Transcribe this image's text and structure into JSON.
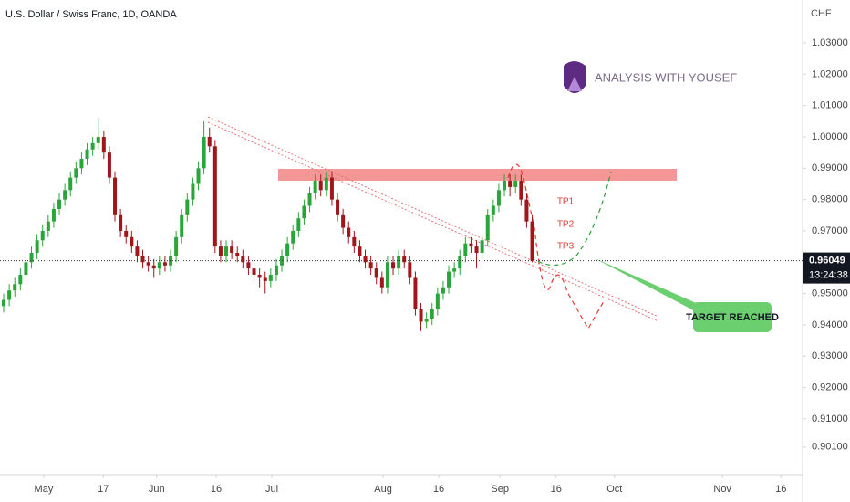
{
  "chart_data": {
    "type": "candlestick",
    "title": "U.S. Dollar / Swiss Franc, 1D, OANDA",
    "currency": "CHF",
    "watermark": "ANALYSIS WITH YOUSEF",
    "annotations": {
      "tp1": "TP1",
      "tp2": "TP2",
      "tp3": "TP3",
      "target": "TARGET REACHED"
    },
    "last_price": 0.96049,
    "countdown": "13:24:38",
    "up_color": "#2aa53a",
    "down_color": "#a0161b",
    "ylim": [
      0.8922,
      1.0437
    ],
    "xlim": [
      -0.66,
      143.6
    ],
    "yticks": [
      {
        "value": 1.03,
        "label": "1.03000"
      },
      {
        "value": 1.02,
        "label": "1.02000"
      },
      {
        "value": 1.01,
        "label": "1.01000"
      },
      {
        "value": 1.0,
        "label": "1.00000"
      },
      {
        "value": 0.99,
        "label": "0.99000"
      },
      {
        "value": 0.98,
        "label": "0.98000"
      },
      {
        "value": 0.97,
        "label": "0.97000"
      },
      {
        "value": 0.95,
        "label": "0.95000"
      },
      {
        "value": 0.94,
        "label": "0.94000"
      },
      {
        "value": 0.93,
        "label": "0.93000"
      },
      {
        "value": 0.92,
        "label": "0.92000"
      },
      {
        "value": 0.91,
        "label": "0.91000"
      },
      {
        "value": 0.901,
        "label": "0.90100"
      }
    ],
    "xticks": [
      {
        "value": 7.2,
        "label": "May"
      },
      {
        "value": 17.9,
        "label": "17"
      },
      {
        "value": 27.5,
        "label": "Jun"
      },
      {
        "value": 38.2,
        "label": "16"
      },
      {
        "value": 48.2,
        "label": "Jul"
      },
      {
        "value": 68.2,
        "label": "Aug"
      },
      {
        "value": 78.2,
        "label": "16"
      },
      {
        "value": 89.2,
        "label": "Sep"
      },
      {
        "value": 99.3,
        "label": "16"
      },
      {
        "value": 109.8,
        "label": "Oct"
      },
      {
        "value": 129.2,
        "label": "Nov"
      },
      {
        "value": 139.7,
        "label": "16"
      }
    ],
    "candles": [
      [
        0.946,
        0.95,
        0.944,
        0.948
      ],
      [
        0.948,
        0.953,
        0.946,
        0.951
      ],
      [
        0.951,
        0.955,
        0.949,
        0.953
      ],
      [
        0.953,
        0.958,
        0.951,
        0.956
      ],
      [
        0.956,
        0.962,
        0.954,
        0.96
      ],
      [
        0.96,
        0.965,
        0.958,
        0.963
      ],
      [
        0.963,
        0.969,
        0.961,
        0.967
      ],
      [
        0.967,
        0.972,
        0.965,
        0.97
      ],
      [
        0.97,
        0.975,
        0.968,
        0.973
      ],
      [
        0.973,
        0.979,
        0.971,
        0.977
      ],
      [
        0.977,
        0.982,
        0.975,
        0.98
      ],
      [
        0.98,
        0.985,
        0.978,
        0.983
      ],
      [
        0.983,
        0.989,
        0.981,
        0.987
      ],
      [
        0.987,
        0.992,
        0.985,
        0.99
      ],
      [
        0.99,
        0.995,
        0.988,
        0.993
      ],
      [
        0.993,
        0.998,
        0.991,
        0.996
      ],
      [
        0.996,
        1.0,
        0.994,
        0.998
      ],
      [
        0.998,
        1.006,
        0.996,
        1.0
      ],
      [
        1.0,
        1.002,
        0.993,
        0.995
      ],
      [
        0.995,
        0.997,
        0.985,
        0.987
      ],
      [
        0.987,
        0.989,
        0.973,
        0.975
      ],
      [
        0.975,
        0.977,
        0.968,
        0.97
      ],
      [
        0.97,
        0.972,
        0.966,
        0.968
      ],
      [
        0.968,
        0.97,
        0.963,
        0.965
      ],
      [
        0.965,
        0.967,
        0.96,
        0.962
      ],
      [
        0.962,
        0.964,
        0.958,
        0.96
      ],
      [
        0.96,
        0.962,
        0.957,
        0.959
      ],
      [
        0.959,
        0.961,
        0.955,
        0.958
      ],
      [
        0.958,
        0.962,
        0.956,
        0.96
      ],
      [
        0.96,
        0.962,
        0.957,
        0.959
      ],
      [
        0.959,
        0.964,
        0.957,
        0.962
      ],
      [
        0.962,
        0.97,
        0.96,
        0.968
      ],
      [
        0.968,
        0.977,
        0.966,
        0.975
      ],
      [
        0.975,
        0.982,
        0.973,
        0.98
      ],
      [
        0.98,
        0.987,
        0.978,
        0.985
      ],
      [
        0.985,
        0.992,
        0.983,
        0.99
      ],
      [
        0.99,
        1.005,
        0.988,
        1.0
      ],
      [
        1.0,
        1.003,
        0.995,
        0.997
      ],
      [
        0.997,
        0.999,
        0.963,
        0.965
      ],
      [
        0.965,
        0.967,
        0.96,
        0.962
      ],
      [
        0.962,
        0.967,
        0.96,
        0.965
      ],
      [
        0.965,
        0.967,
        0.961,
        0.963
      ],
      [
        0.963,
        0.965,
        0.96,
        0.962
      ],
      [
        0.962,
        0.964,
        0.958,
        0.96
      ],
      [
        0.96,
        0.962,
        0.956,
        0.958
      ],
      [
        0.958,
        0.96,
        0.953,
        0.956
      ],
      [
        0.956,
        0.958,
        0.952,
        0.955
      ],
      [
        0.955,
        0.957,
        0.95,
        0.954
      ],
      [
        0.954,
        0.958,
        0.952,
        0.956
      ],
      [
        0.956,
        0.961,
        0.954,
        0.959
      ],
      [
        0.959,
        0.964,
        0.957,
        0.962
      ],
      [
        0.962,
        0.968,
        0.96,
        0.966
      ],
      [
        0.966,
        0.972,
        0.964,
        0.97
      ],
      [
        0.97,
        0.976,
        0.968,
        0.974
      ],
      [
        0.974,
        0.98,
        0.972,
        0.978
      ],
      [
        0.978,
        0.984,
        0.976,
        0.982
      ],
      [
        0.982,
        0.988,
        0.98,
        0.986
      ],
      [
        0.986,
        0.988,
        0.981,
        0.983
      ],
      [
        0.983,
        0.989,
        0.981,
        0.987
      ],
      [
        0.987,
        0.989,
        0.978,
        0.98
      ],
      [
        0.98,
        0.982,
        0.973,
        0.975
      ],
      [
        0.975,
        0.977,
        0.969,
        0.971
      ],
      [
        0.971,
        0.973,
        0.966,
        0.968
      ],
      [
        0.968,
        0.97,
        0.963,
        0.965
      ],
      [
        0.965,
        0.967,
        0.96,
        0.962
      ],
      [
        0.962,
        0.964,
        0.958,
        0.96
      ],
      [
        0.96,
        0.962,
        0.956,
        0.958
      ],
      [
        0.958,
        0.96,
        0.953,
        0.955
      ],
      [
        0.955,
        0.957,
        0.95,
        0.952
      ],
      [
        0.952,
        0.962,
        0.95,
        0.96
      ],
      [
        0.96,
        0.962,
        0.956,
        0.958
      ],
      [
        0.958,
        0.964,
        0.956,
        0.962
      ],
      [
        0.962,
        0.964,
        0.958,
        0.96
      ],
      [
        0.96,
        0.962,
        0.953,
        0.955
      ],
      [
        0.955,
        0.957,
        0.943,
        0.945
      ],
      [
        0.945,
        0.947,
        0.938,
        0.941
      ],
      [
        0.941,
        0.944,
        0.939,
        0.942
      ],
      [
        0.942,
        0.947,
        0.94,
        0.945
      ],
      [
        0.945,
        0.952,
        0.943,
        0.95
      ],
      [
        0.95,
        0.954,
        0.948,
        0.952
      ],
      [
        0.952,
        0.959,
        0.95,
        0.957
      ],
      [
        0.957,
        0.96,
        0.955,
        0.958
      ],
      [
        0.958,
        0.964,
        0.956,
        0.962
      ],
      [
        0.962,
        0.968,
        0.96,
        0.966
      ],
      [
        0.966,
        0.968,
        0.963,
        0.965
      ],
      [
        0.965,
        0.967,
        0.958,
        0.963
      ],
      [
        0.963,
        0.969,
        0.961,
        0.967
      ],
      [
        0.967,
        0.977,
        0.965,
        0.975
      ],
      [
        0.975,
        0.98,
        0.973,
        0.978
      ],
      [
        0.978,
        0.985,
        0.976,
        0.983
      ],
      [
        0.983,
        0.988,
        0.981,
        0.986
      ],
      [
        0.986,
        0.988,
        0.981,
        0.984
      ],
      [
        0.984,
        0.988,
        0.982,
        0.986
      ],
      [
        0.986,
        0.988,
        0.978,
        0.98
      ],
      [
        0.98,
        0.982,
        0.971,
        0.973
      ],
      [
        0.973,
        0.975,
        0.96,
        0.9605
      ]
    ]
  }
}
